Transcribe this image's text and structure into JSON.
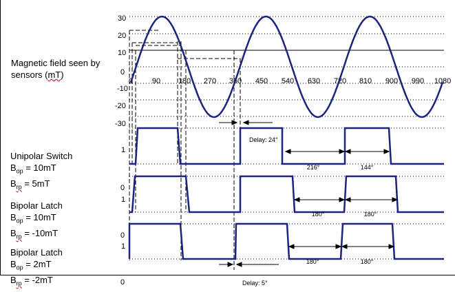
{
  "field_label": {
    "line1": "Magnetic field seen by",
    "line2_pre": "sensors (",
    "line2_unit": "mT",
    "line2_post": ")"
  },
  "y_axis_ticks": [
    "30",
    "20",
    "10",
    "0",
    "-10",
    "-20",
    "-30"
  ],
  "angle_ticks": [
    "0",
    "90",
    "180",
    "270",
    "360",
    "450",
    "540",
    "630",
    "720",
    "810",
    "900",
    "990",
    "1080"
  ],
  "sensors": [
    {
      "name": "Unipolar Switch",
      "op_var": "B",
      "op_sub": "op",
      "op_val": "=  10mT",
      "rp_var": "B",
      "rp_sub": "rp",
      "rp_val": "= 5mT",
      "level_high": "1",
      "level_low": "",
      "interval_1": "216°",
      "interval_2": "144°"
    },
    {
      "name": "Bipolar Latch",
      "op_var": "B",
      "op_sub": "op",
      "op_val": "=  10mT",
      "rp_var": "B",
      "rp_sub": "rp",
      "rp_val": "= -10mT",
      "level_high": "1",
      "level_low": "0",
      "interval_1": "180°",
      "interval_2": "180°"
    },
    {
      "name": "Bipolar Latch",
      "op_var": "B",
      "op_sub": "op",
      "op_val": "=  2mT",
      "rp_var": "B",
      "rp_sub": "rp",
      "rp_val": "= -2mT",
      "level_high": "1",
      "level_low": "0",
      "interval_1": "180°",
      "interval_2": "180°"
    }
  ],
  "bottom_zero": "0",
  "delay_1": "Delay: 24°",
  "delay_2": "Delay: 5°",
  "colors": {
    "wave": "#1a237e",
    "grid": "#000000",
    "dashed": "#000000"
  },
  "chart_data": {
    "type": "line",
    "x_unit": "degrees",
    "y_unit": "mT",
    "x_ticks": [
      0,
      90,
      180,
      270,
      360,
      450,
      540,
      630,
      720,
      810,
      900,
      990,
      1080
    ],
    "y_ticks": [
      30,
      20,
      10,
      0,
      -10,
      -20,
      -30
    ],
    "field_amplitude": 30,
    "field_offset": 0,
    "thresholds": [
      10,
      5,
      2,
      -2,
      -10
    ],
    "unipolar_switch": {
      "op": 10,
      "rp": 5,
      "on_interval": 216,
      "off_interval": 144,
      "delay": 24
    },
    "bipolar_latch_10": {
      "op": 10,
      "rp": -10,
      "on_interval": 180,
      "off_interval": 180
    },
    "bipolar_latch_2": {
      "op": 2,
      "rp": -2,
      "on_interval": 180,
      "off_interval": 180,
      "delay": 5
    }
  }
}
